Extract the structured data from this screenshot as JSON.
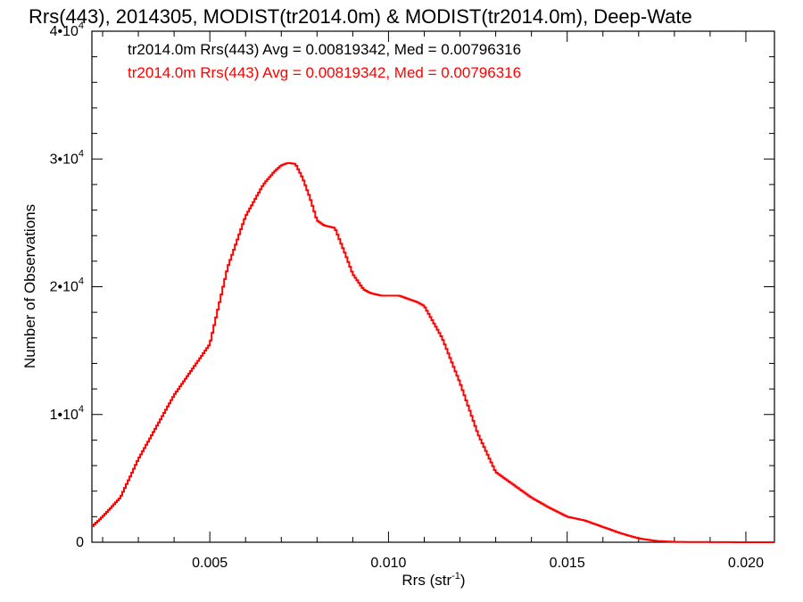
{
  "chart_data": {
    "type": "line",
    "title": "Rrs(443), 2014305, MODIST(tr2014.0m) & MODIST(tr2014.0m), Deep-Wate",
    "xlabel": "Rrs (str",
    "xlabel_sup": "-1",
    "xlabel_end": ")",
    "ylabel": "Number of Observations",
    "xlim": [
      0.0017,
      0.0208
    ],
    "ylim": [
      0,
      40000
    ],
    "xticks": [
      {
        "value": 0.005,
        "label": "0.005"
      },
      {
        "value": 0.01,
        "label": "0.010"
      },
      {
        "value": 0.015,
        "label": "0.015"
      },
      {
        "value": 0.02,
        "label": "0.020"
      }
    ],
    "yticks": [
      {
        "value": 0,
        "label": "0",
        "sup": ""
      },
      {
        "value": 10000,
        "label": "1•10",
        "sup": "4"
      },
      {
        "value": 20000,
        "label": "2•10",
        "sup": "4"
      },
      {
        "value": 30000,
        "label": "3•10",
        "sup": "4"
      },
      {
        "value": 40000,
        "label": "4•10",
        "sup": "4"
      }
    ],
    "legend": [
      {
        "text": "tr2014.0m Rrs(443) Avg = 0.00819342, Med = 0.00796316",
        "color": "#000000"
      },
      {
        "text": "tr2014.0m Rrs(443) Avg = 0.00819342, Med = 0.00796316",
        "color": "#ff0000"
      }
    ],
    "legend_position": "top-left",
    "series": [
      {
        "color": "#ff0000",
        "x": [
          0.0017,
          0.002,
          0.0025,
          0.003,
          0.0035,
          0.004,
          0.0045,
          0.005,
          0.0055,
          0.006,
          0.0065,
          0.0068,
          0.007,
          0.0072,
          0.0074,
          0.0076,
          0.0078,
          0.008,
          0.0082,
          0.0085,
          0.0088,
          0.009,
          0.0093,
          0.0095,
          0.0098,
          0.01,
          0.0103,
          0.0105,
          0.0108,
          0.011,
          0.0115,
          0.012,
          0.0125,
          0.013,
          0.0135,
          0.014,
          0.0145,
          0.015,
          0.0155,
          0.016,
          0.0165,
          0.017,
          0.0175,
          0.018,
          0.019,
          0.02,
          0.0208
        ],
        "y": [
          1200,
          2000,
          3500,
          6500,
          9000,
          11500,
          13500,
          15500,
          21500,
          25500,
          28000,
          29000,
          29500,
          29700,
          29600,
          28500,
          27000,
          25200,
          24800,
          24600,
          22500,
          21000,
          19800,
          19500,
          19300,
          19300,
          19300,
          19100,
          18800,
          18500,
          16000,
          12500,
          8500,
          5500,
          4500,
          3500,
          2700,
          2000,
          1700,
          1200,
          700,
          300,
          100,
          30,
          10,
          0,
          0
        ]
      }
    ]
  }
}
